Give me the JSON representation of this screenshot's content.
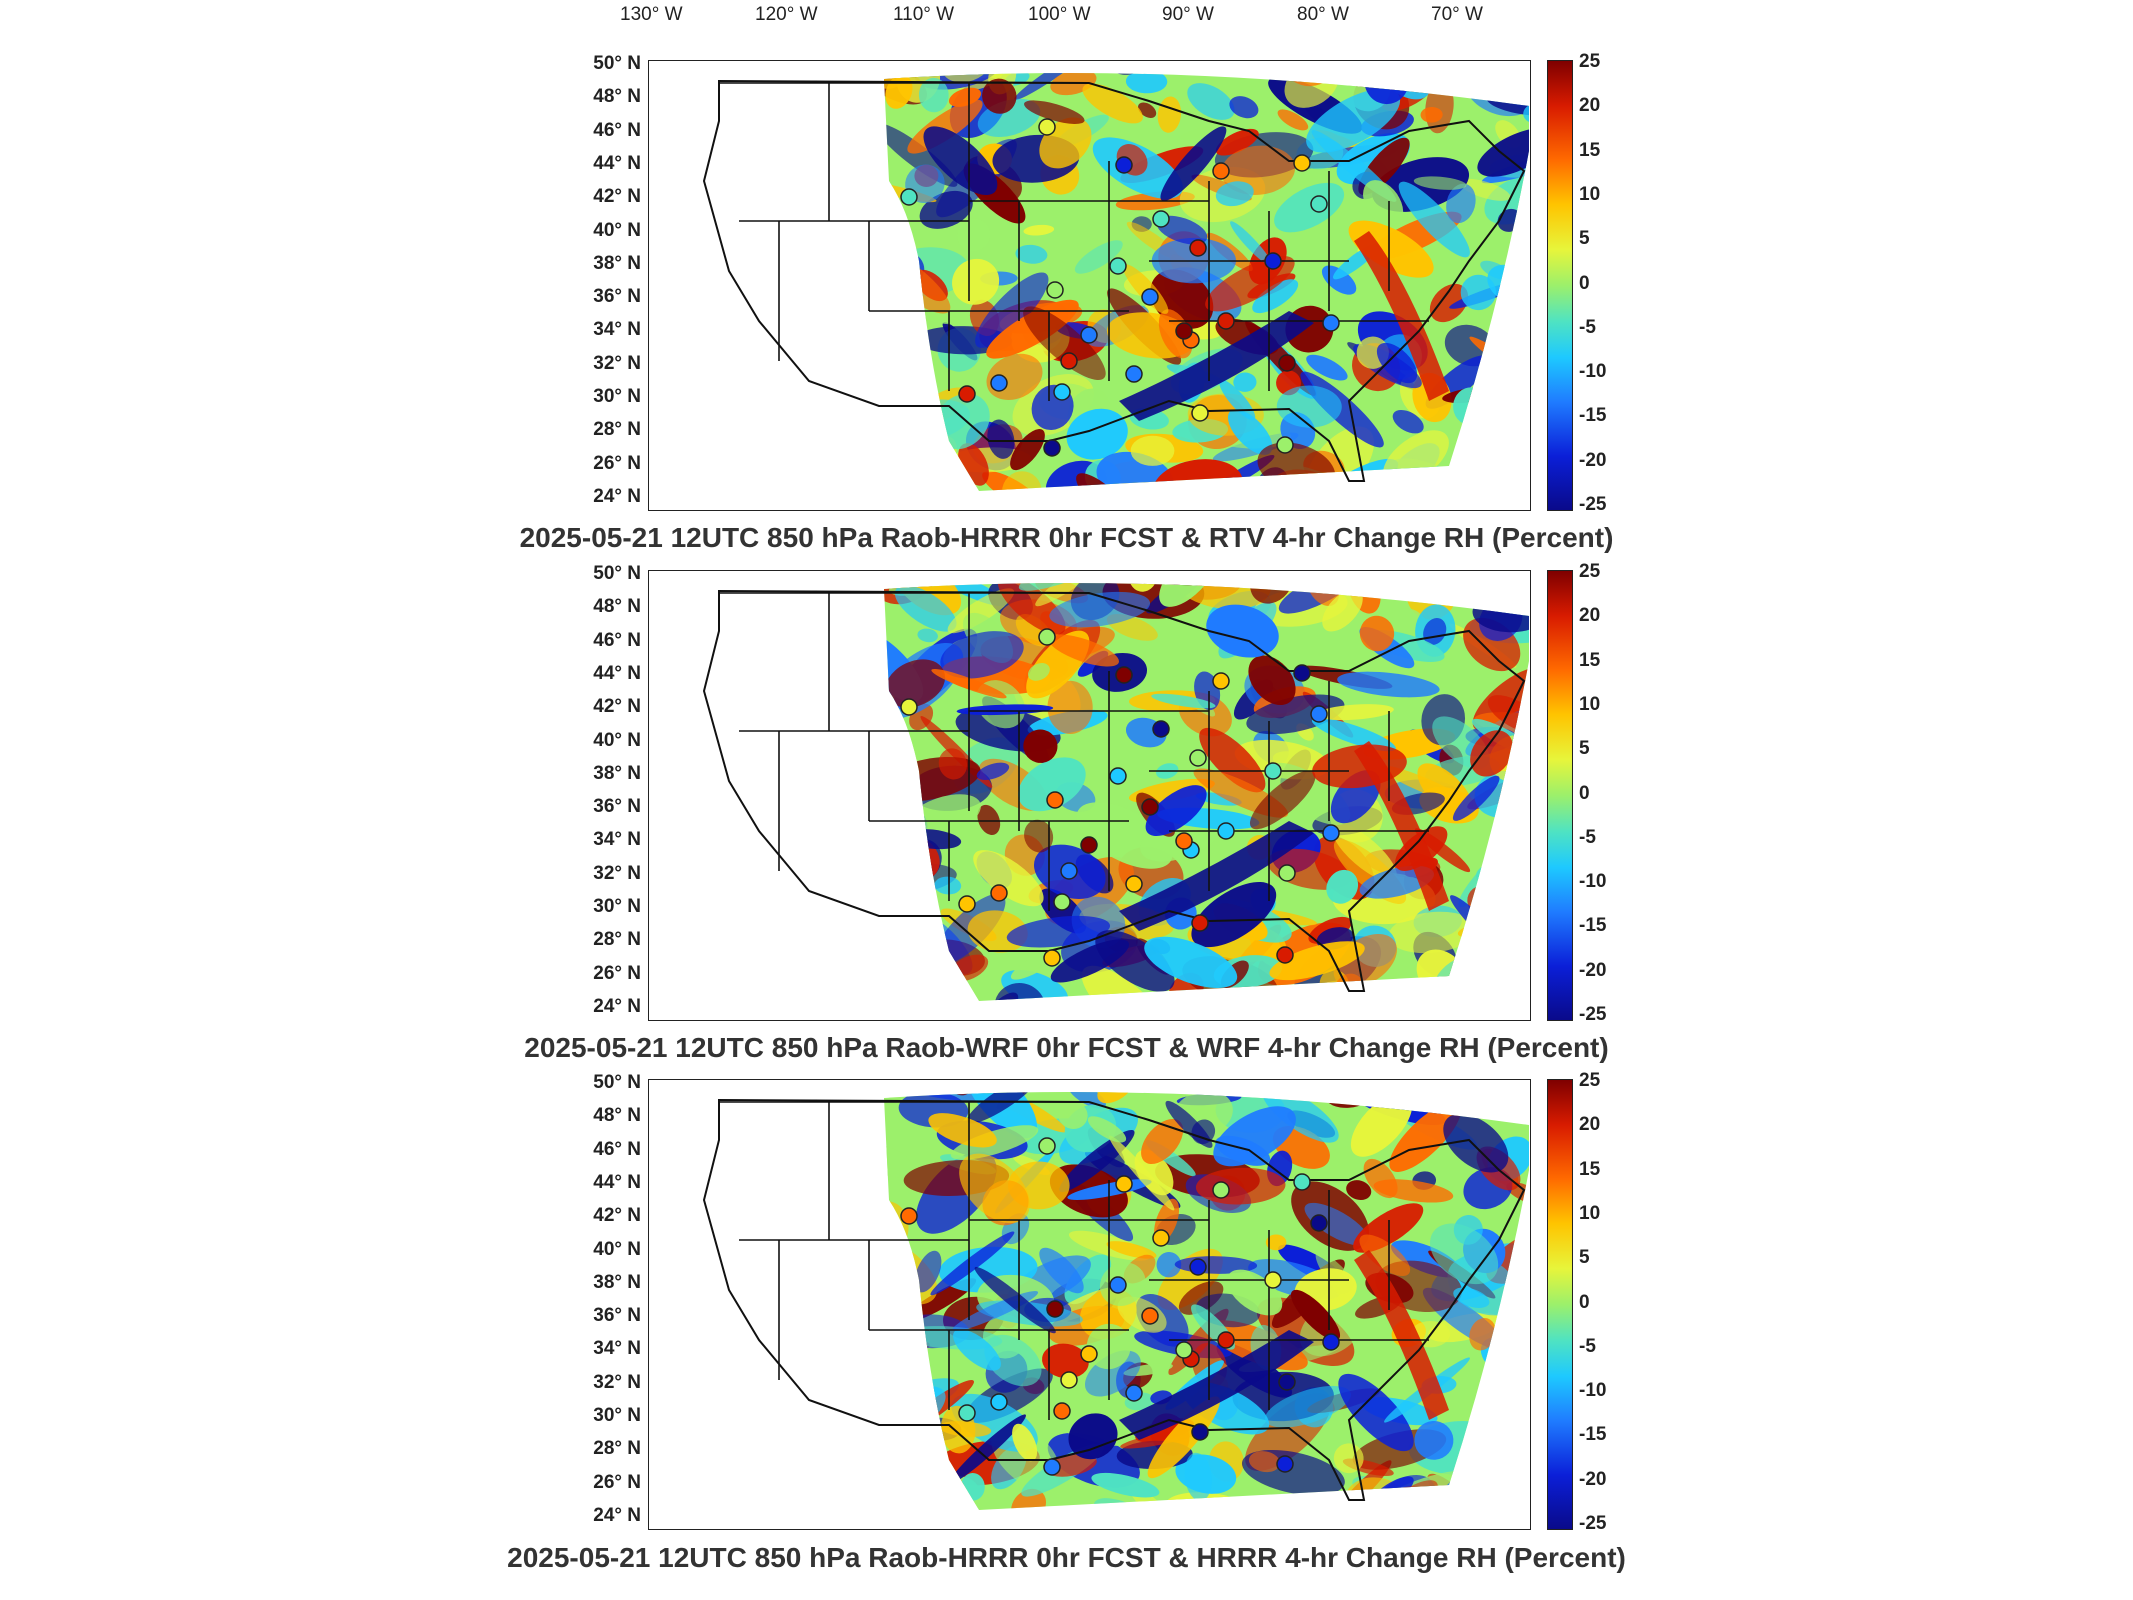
{
  "lon_labels": [
    "130° W",
    "120° W",
    "110° W",
    "100° W",
    "90° W",
    "80° W",
    "70° W"
  ],
  "lat_labels": [
    "50° N",
    "48° N",
    "46° N",
    "44° N",
    "42° N",
    "40° N",
    "38° N",
    "36° N",
    "34° N",
    "32° N",
    "30° N",
    "28° N",
    "26° N",
    "24° N"
  ],
  "colorbar_ticks": [
    "25",
    "20",
    "15",
    "10",
    "5",
    "0",
    "-5",
    "-10",
    "-15",
    "-20",
    "-25"
  ],
  "colorbar_colors": [
    "#7f0000",
    "#d81b00",
    "#ff6a00",
    "#ffc400",
    "#e7f53b",
    "#9cf06b",
    "#4fe3c2",
    "#1ec9ff",
    "#1f7bff",
    "#0b1fd8",
    "#0a0a8a"
  ],
  "panels": [
    {
      "title": "2025-05-21 12UTC 850 hPa Raob-HRRR 0hr FCST & RTV 4-hr Change RH (Percent)"
    },
    {
      "title": "2025-05-21 12UTC 850 hPa Raob-WRF 0hr FCST & WRF 4-hr Change RH (Percent)"
    },
    {
      "title": "2025-05-21 12UTC 850 hPa Raob-HRRR 0hr FCST & HRRR 4-hr Change RH (Percent)"
    }
  ]
}
